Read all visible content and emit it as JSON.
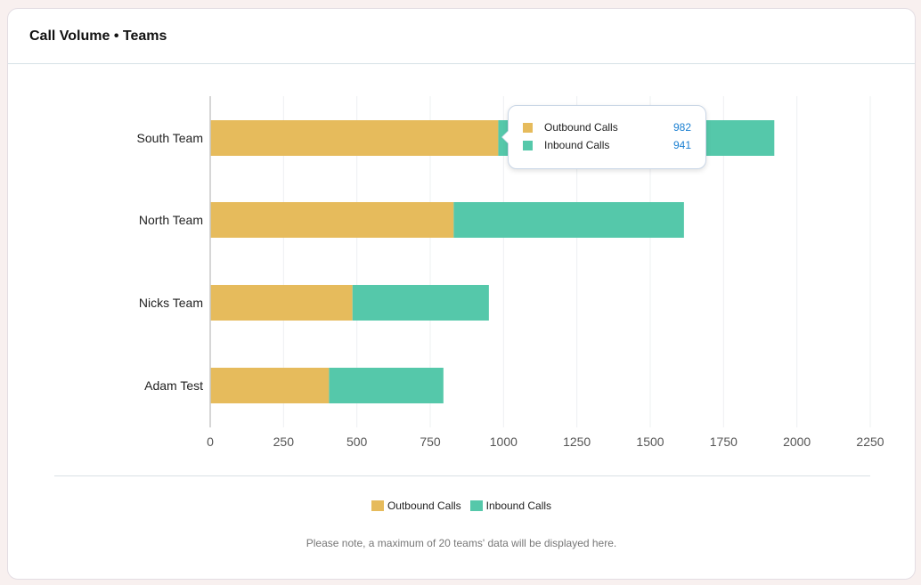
{
  "card": {
    "title": "Call Volume • Teams"
  },
  "colors": {
    "outbound": "#e6bb5c",
    "inbound": "#55c8aa"
  },
  "chart_data": {
    "type": "bar",
    "orientation": "horizontal",
    "stacked": true,
    "title": "",
    "xlabel": "",
    "ylabel": "",
    "categories": [
      "South Team",
      "North Team",
      "Nicks Team",
      "Adam Test"
    ],
    "series": [
      {
        "name": "Outbound Calls",
        "values": [
          982,
          830,
          485,
          405
        ]
      },
      {
        "name": "Inbound Calls",
        "values": [
          941,
          785,
          465,
          390
        ]
      }
    ],
    "xlim": [
      0,
      2250
    ],
    "xticks": [
      0,
      250,
      500,
      750,
      1000,
      1250,
      1500,
      1750,
      2000,
      2250
    ],
    "grid": true,
    "legend": "bottom-center"
  },
  "tooltip": {
    "rows": [
      {
        "label": "Outbound Calls",
        "value": "982"
      },
      {
        "label": "Inbound Calls",
        "value": "941"
      }
    ]
  },
  "note": "Please note, a maximum of 20 teams' data will be displayed here."
}
